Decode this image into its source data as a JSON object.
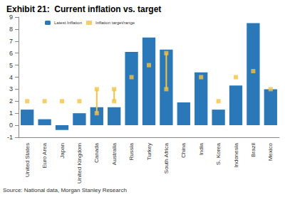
{
  "chart_data": {
    "type": "bar",
    "title": "Exhibit 21:  Current inflation vs. target",
    "annotations": [
      "Source: National data, Morgan Stanley Research"
    ],
    "categories": [
      "United States",
      "Euro Area",
      "Japan",
      "United Kingdom",
      "Canada",
      "Australia",
      "Russia",
      "Turkey",
      "South Africa",
      "China",
      "India",
      "S. Korea",
      "Indonesia",
      "Brazil",
      "Mexico"
    ],
    "series": [
      {
        "name": "Latest Inflation",
        "type": "bar",
        "color": "#2a78b8",
        "values": [
          1.3,
          0.5,
          -0.4,
          1.0,
          1.5,
          1.5,
          6.1,
          7.3,
          6.3,
          1.9,
          4.4,
          1.3,
          3.3,
          8.5,
          3.0
        ]
      },
      {
        "name": "Inflation target/range",
        "type": "scatter",
        "marker": "square",
        "color": "#f5c242",
        "values": [
          2,
          2,
          2,
          2,
          1,
          2,
          4,
          5,
          3,
          null,
          4,
          2,
          4,
          4.5,
          3
        ],
        "range_high": [
          null,
          null,
          null,
          null,
          3,
          3,
          null,
          null,
          6,
          null,
          null,
          null,
          null,
          null,
          null
        ]
      }
    ],
    "ylim": [
      -1,
      9
    ],
    "yticks": [
      -1,
      0,
      1,
      2,
      3,
      4,
      5,
      6,
      7,
      8,
      9
    ],
    "grid": false,
    "legend": "top-left"
  }
}
